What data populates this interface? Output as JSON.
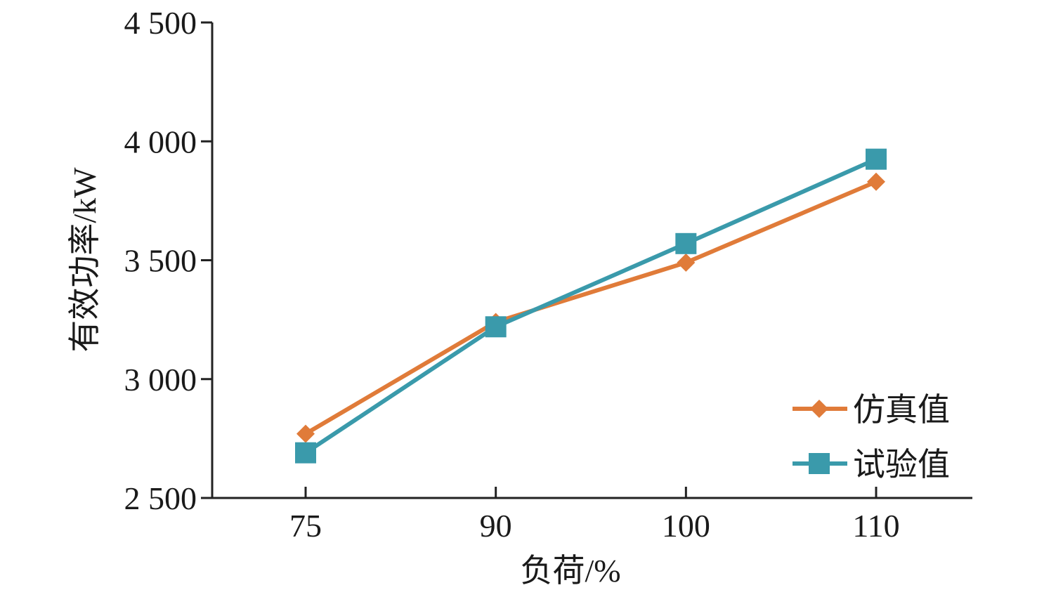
{
  "chart_data": {
    "type": "line",
    "title": "",
    "xlabel": "负荷/%",
    "ylabel": "有效功率/kW",
    "categories": [
      "75",
      "90",
      "100",
      "110"
    ],
    "ylim": [
      2500,
      4500
    ],
    "yticks": [
      "2 500",
      "3 000",
      "3 500",
      "4 000",
      "4 500"
    ],
    "yticks_values": [
      2500,
      3000,
      3500,
      4000,
      4500
    ],
    "grid": false,
    "legend_position": "bottom-right",
    "series": [
      {
        "name": "仿真值",
        "values": [
          2770,
          3240,
          3490,
          3830
        ],
        "color": "#e07b39",
        "marker": "diamond"
      },
      {
        "name": "试验值",
        "values": [
          2690,
          3220,
          3570,
          3925
        ],
        "color": "#3a9aab",
        "marker": "square"
      }
    ]
  }
}
